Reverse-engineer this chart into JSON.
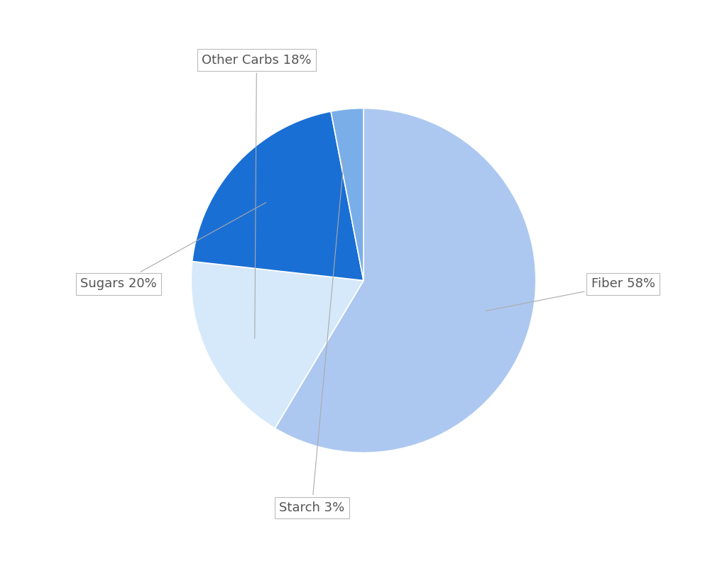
{
  "slices": [
    {
      "label": "Fiber 58%",
      "value": 58,
      "color": "#adc8f0"
    },
    {
      "label": "Other Carbs 18%",
      "value": 18,
      "color": "#d6e9fa"
    },
    {
      "label": "Sugars 20%",
      "value": 20,
      "color": "#1a6fd4"
    },
    {
      "label": "Starch 3%",
      "value": 3,
      "color": "#7aaee8"
    }
  ],
  "background_color": "#ffffff",
  "label_fontsize": 13,
  "label_color": "#555555",
  "start_angle": 90,
  "counterclock": false,
  "figsize": [
    10.24,
    7.91
  ],
  "dpi": 100
}
